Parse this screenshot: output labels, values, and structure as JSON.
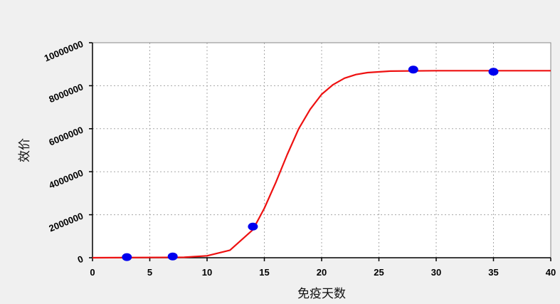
{
  "chart_data": {
    "type": "scatter",
    "title": "",
    "xlabel": "免疫天数",
    "ylabel": "效价",
    "xlim": [
      0,
      40
    ],
    "ylim": [
      0,
      10000000
    ],
    "x_ticks": [
      "0",
      "5",
      "10",
      "15",
      "20",
      "25",
      "30",
      "35",
      "40"
    ],
    "y_ticks": [
      "0",
      "2000000",
      "4000000",
      "6000000",
      "8000000",
      "10000000"
    ],
    "grid": true,
    "legend": "none",
    "series": [
      {
        "kind": "scatter",
        "color": "#0000ee",
        "points": [
          {
            "x": 3,
            "y": 30000
          },
          {
            "x": 7,
            "y": 60000
          },
          {
            "x": 14,
            "y": 1450000
          },
          {
            "x": 28,
            "y": 8750000
          },
          {
            "x": 35,
            "y": 8650000
          }
        ]
      },
      {
        "kind": "line",
        "color": "#ee1111",
        "points": [
          {
            "x": 0,
            "y": 0
          },
          {
            "x": 8,
            "y": 20000
          },
          {
            "x": 10,
            "y": 90000
          },
          {
            "x": 12,
            "y": 350000
          },
          {
            "x": 14,
            "y": 1300000
          },
          {
            "x": 15,
            "y": 2300000
          },
          {
            "x": 16,
            "y": 3500000
          },
          {
            "x": 17,
            "y": 4800000
          },
          {
            "x": 18,
            "y": 6000000
          },
          {
            "x": 19,
            "y": 6900000
          },
          {
            "x": 20,
            "y": 7600000
          },
          {
            "x": 21,
            "y": 8050000
          },
          {
            "x": 22,
            "y": 8350000
          },
          {
            "x": 23,
            "y": 8520000
          },
          {
            "x": 24,
            "y": 8610000
          },
          {
            "x": 26,
            "y": 8680000
          },
          {
            "x": 30,
            "y": 8700000
          },
          {
            "x": 40,
            "y": 8700000
          }
        ]
      }
    ]
  }
}
